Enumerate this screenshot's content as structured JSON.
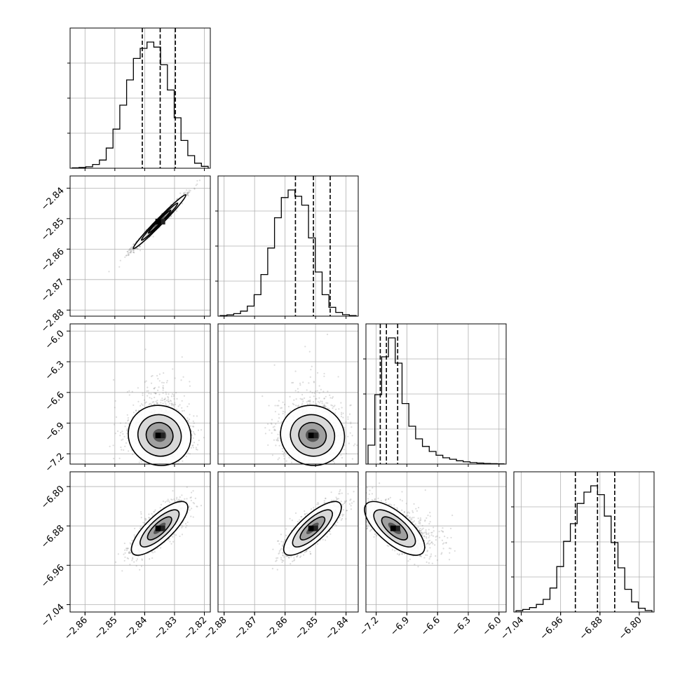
{
  "chart_data": {
    "type": "corner",
    "title": "",
    "grid": true,
    "n_params": 4,
    "parameters": [
      {
        "label": "",
        "range": [
          -2.865,
          -2.818
        ],
        "ticks": [
          "−2.86",
          "−2.85",
          "−2.84",
          "−2.83",
          "−2.82"
        ],
        "tick_values": [
          -2.86,
          -2.85,
          -2.84,
          -2.83,
          -2.82
        ],
        "quantiles": [
          -2.8408,
          -2.8348,
          -2.8297
        ]
      },
      {
        "label": "",
        "range": [
          -2.882,
          -2.836
        ],
        "ticks": [
          "−2.88",
          "−2.87",
          "−2.86",
          "−2.85",
          "−2.84"
        ],
        "tick_values": [
          -2.88,
          -2.87,
          -2.86,
          -2.85,
          -2.84
        ],
        "quantiles": [
          -2.8566,
          -2.8507,
          -2.8452
        ]
      },
      {
        "label": "",
        "range": [
          -7.3,
          -5.93
        ],
        "ticks": [
          "−7.2",
          "−6.9",
          "−6.6",
          "−6.3",
          "−6.0"
        ],
        "tick_values": [
          -7.2,
          -6.9,
          -6.6,
          -6.3,
          -6.0
        ],
        "quantiles": [
          -7.16,
          -7.1,
          -6.99
        ]
      },
      {
        "label": "",
        "range": [
          -7.055,
          -6.77
        ],
        "ticks": [
          "−7.04",
          "−6.96",
          "−6.88",
          "−6.80"
        ],
        "tick_values": [
          -7.04,
          -6.96,
          -6.88,
          -6.8
        ],
        "quantiles": [
          -6.93,
          -6.885,
          -6.85
        ]
      }
    ],
    "marginal_histograms": [
      [
        0.003,
        0.006,
        0.012,
        0.03,
        0.065,
        0.16,
        0.31,
        0.5,
        0.7,
        0.87,
        0.95,
        1.0,
        0.96,
        0.82,
        0.62,
        0.4,
        0.22,
        0.1,
        0.04,
        0.015
      ],
      [
        0.005,
        0.01,
        0.02,
        0.04,
        0.08,
        0.17,
        0.33,
        0.54,
        0.78,
        0.94,
        1.0,
        0.95,
        0.88,
        0.62,
        0.35,
        0.17,
        0.07,
        0.03,
        0.012,
        0.005
      ],
      [
        0.15,
        0.55,
        0.85,
        1.0,
        0.8,
        0.48,
        0.3,
        0.2,
        0.14,
        0.1,
        0.07,
        0.05,
        0.038,
        0.026,
        0.018,
        0.012,
        0.008,
        0.005,
        0.003,
        0.002
      ],
      [
        0.01,
        0.02,
        0.035,
        0.06,
        0.1,
        0.19,
        0.36,
        0.56,
        0.7,
        0.86,
        0.95,
        1.0,
        0.93,
        0.76,
        0.55,
        0.35,
        0.18,
        0.08,
        0.03,
        0.012
      ]
    ],
    "joint_2d": [
      {
        "x": 0,
        "y": 1,
        "center": [
          -2.835,
          -2.851
        ],
        "std": [
          0.0042,
          0.0042
        ],
        "rho": 0.985
      },
      {
        "x": 0,
        "y": 2,
        "center": [
          -2.835,
          -7.02
        ],
        "std": [
          0.005,
          0.14
        ],
        "rho": -0.05
      },
      {
        "x": 1,
        "y": 2,
        "center": [
          -2.851,
          -7.02
        ],
        "std": [
          0.005,
          0.14
        ],
        "rho": -0.05
      },
      {
        "x": 0,
        "y": 3,
        "center": [
          -2.835,
          -6.885
        ],
        "std": [
          0.0045,
          0.026
        ],
        "rho": 0.78
      },
      {
        "x": 1,
        "y": 3,
        "center": [
          -2.851,
          -6.885
        ],
        "std": [
          0.0045,
          0.026
        ],
        "rho": 0.78
      },
      {
        "x": 2,
        "y": 3,
        "center": [
          -7.02,
          -6.885
        ],
        "std": [
          0.14,
          0.026
        ],
        "rho": -0.7
      }
    ]
  }
}
